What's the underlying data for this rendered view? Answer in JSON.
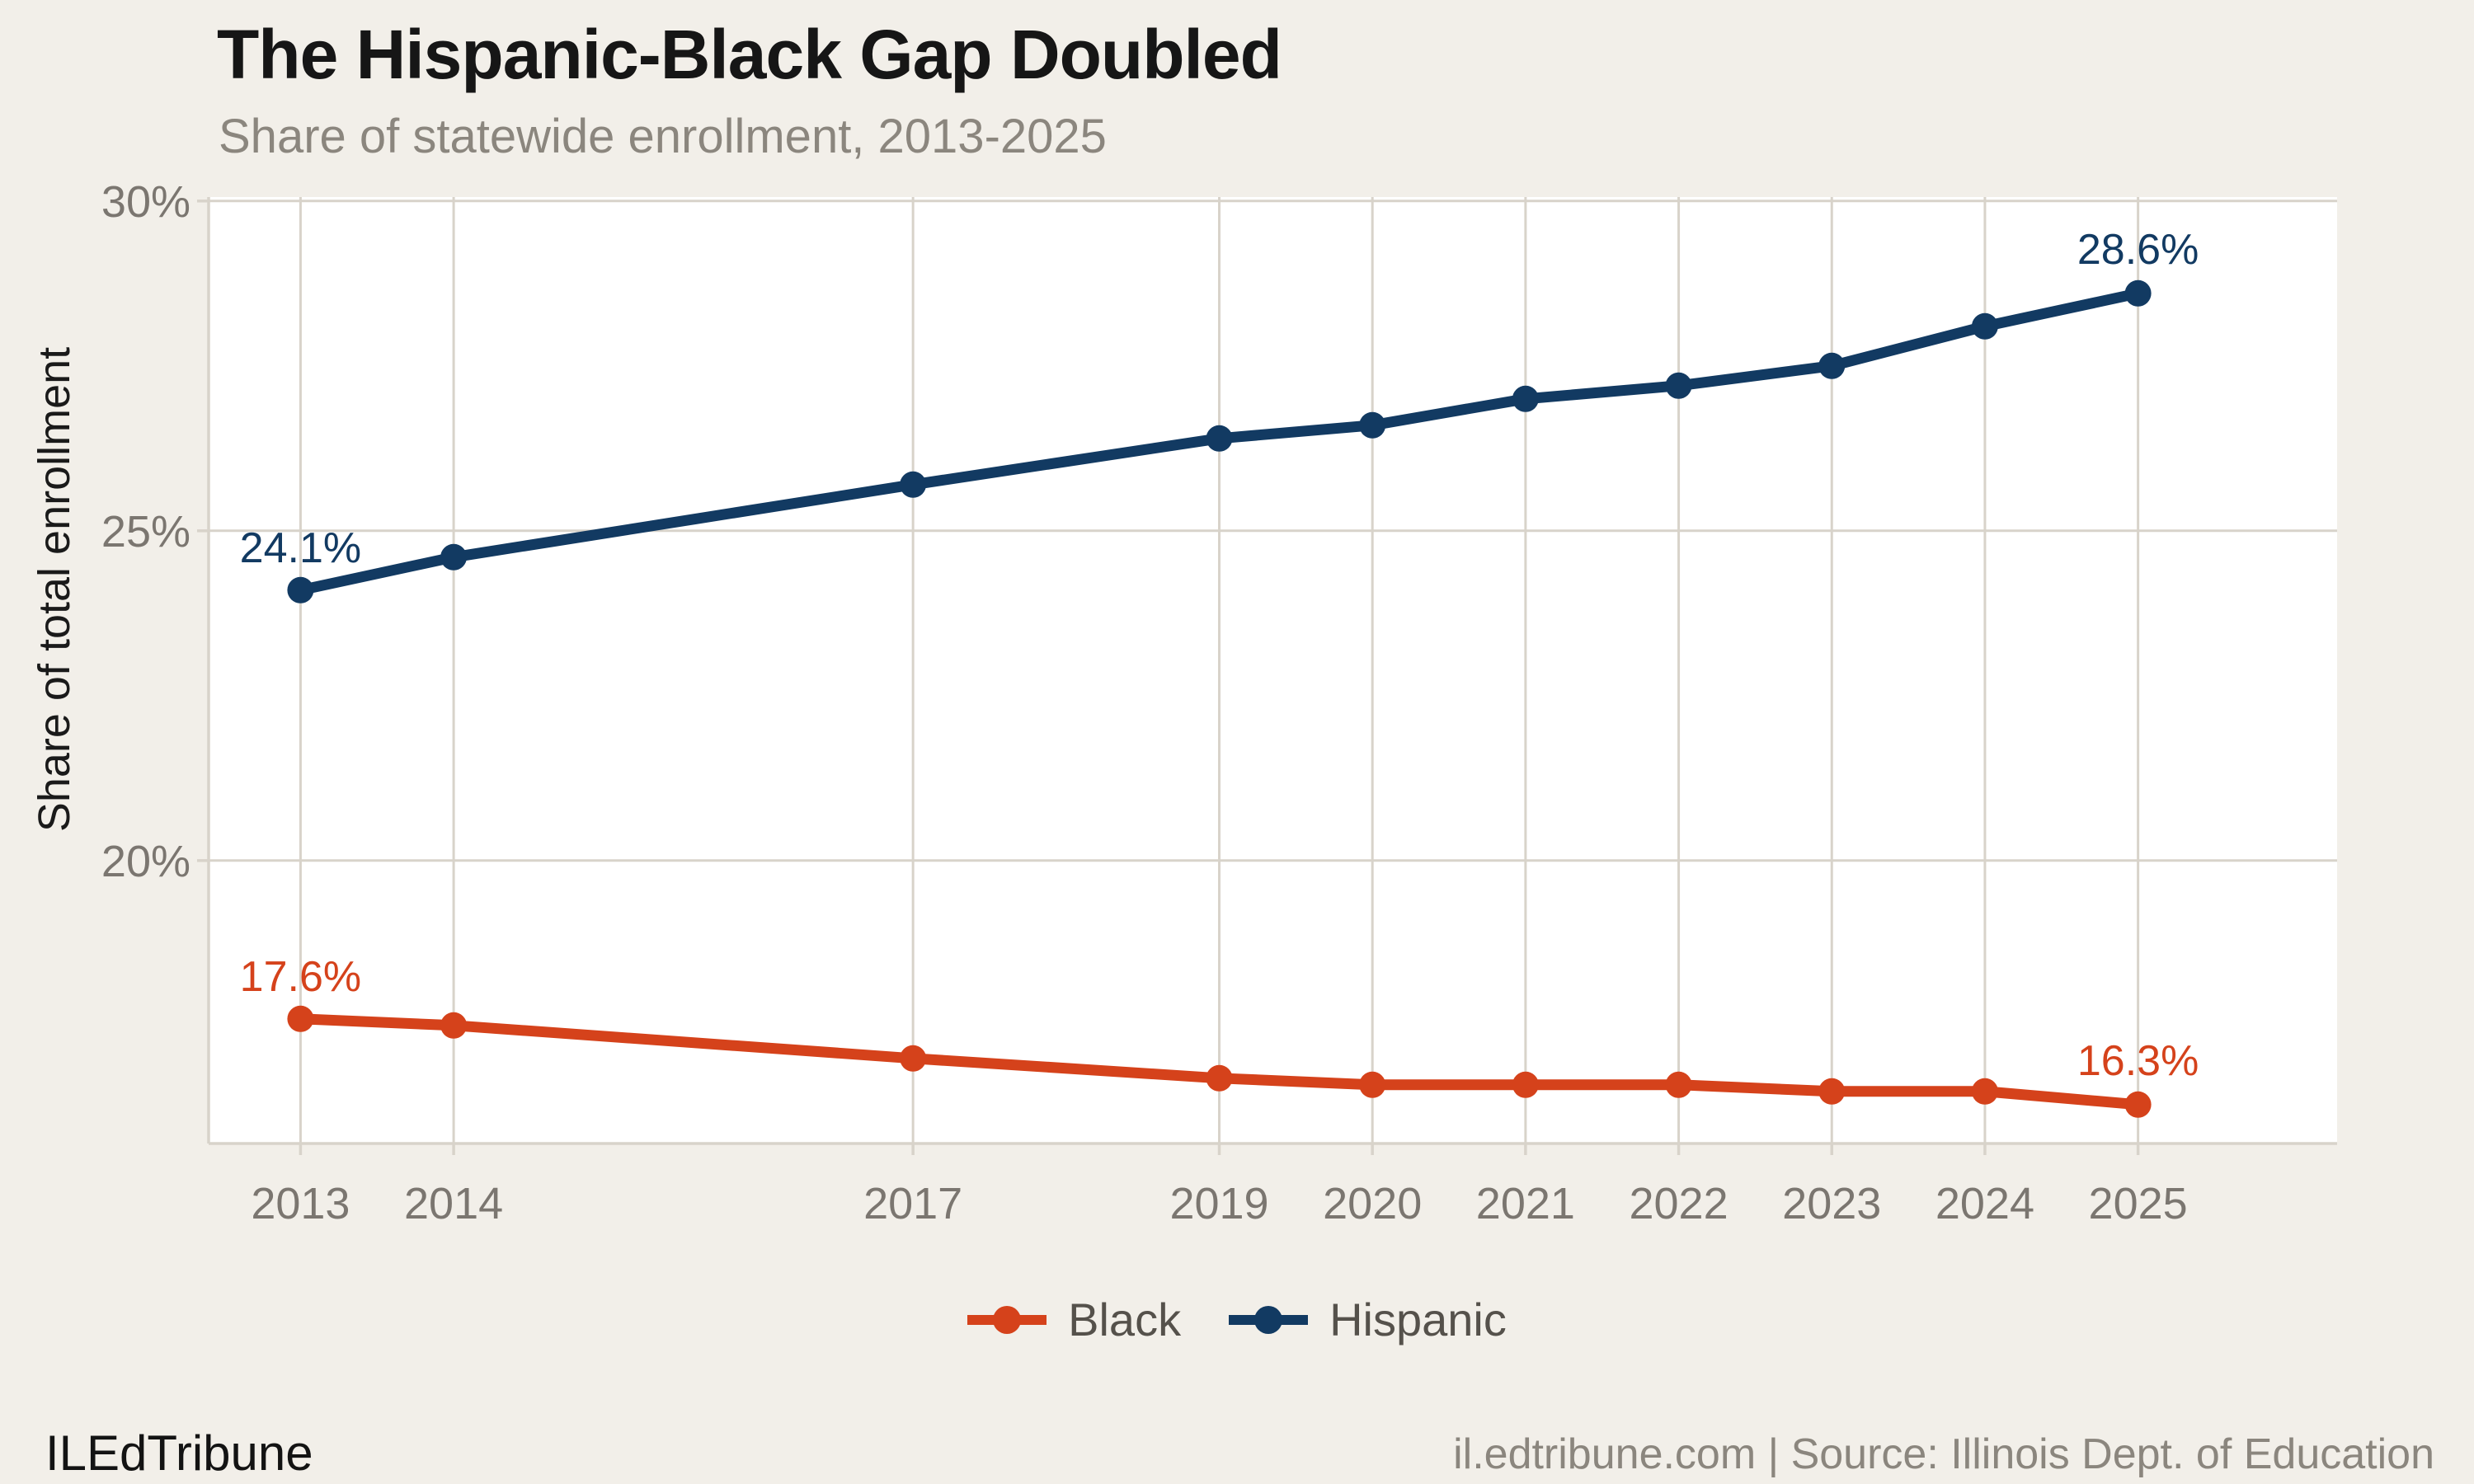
{
  "header": {
    "title": "The Hispanic-Black Gap Doubled",
    "subtitle": "Share of statewide enrollment, 2013-2025"
  },
  "chart_data": {
    "type": "line",
    "title": "The Hispanic-Black Gap Doubled",
    "subtitle": "Share of statewide enrollment, 2013-2025",
    "ylabel": "Share of total enrollment",
    "xlabel": "",
    "x": [
      2013,
      2014,
      2017,
      2019,
      2020,
      2021,
      2022,
      2023,
      2024,
      2025
    ],
    "series": [
      {
        "name": "Black",
        "color": "#D5421B",
        "values": [
          17.6,
          17.5,
          17.0,
          16.7,
          16.6,
          16.6,
          16.6,
          16.5,
          16.5,
          16.3
        ],
        "first_label": "17.6%",
        "last_label": "16.3%"
      },
      {
        "name": "Hispanic",
        "color": "#123A62",
        "values": [
          24.1,
          24.6,
          25.7,
          26.4,
          26.6,
          27.0,
          27.2,
          27.5,
          28.1,
          28.6
        ],
        "first_label": "24.1%",
        "last_label": "28.6%"
      }
    ],
    "y_ticks": [
      {
        "value": 20,
        "label": "20%"
      },
      {
        "value": 25,
        "label": "25%"
      },
      {
        "value": 30,
        "label": "30%"
      }
    ],
    "x_range": [
      2012.4,
      2026.3
    ],
    "y_range": [
      15.71,
      30.06
    ],
    "grid": true,
    "legend_position": "bottom"
  },
  "footer": {
    "brand": "ILEdTribune",
    "source": "il.edtribune.com | Source: Illinois Dept. of Education"
  },
  "colors": {
    "background": "#F2EFE9",
    "panel": "#FFFFFF",
    "grid": "#D8D3CA",
    "axis_text": "#7B7670",
    "annotation_black": "#D5421B",
    "annotation_hispanic": "#123A62"
  }
}
